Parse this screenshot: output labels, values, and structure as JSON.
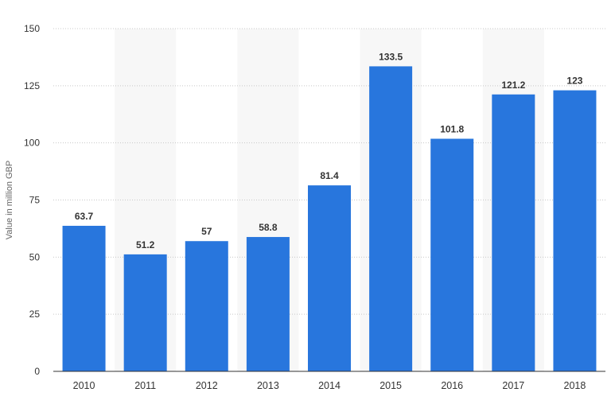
{
  "chart_data": {
    "type": "bar",
    "categories": [
      "2010",
      "2011",
      "2012",
      "2013",
      "2014",
      "2015",
      "2016",
      "2017",
      "2018"
    ],
    "values": [
      63.7,
      51.2,
      57,
      58.8,
      81.4,
      133.5,
      101.8,
      121.2,
      123
    ],
    "data_labels": [
      "63.7",
      "51.2",
      "57",
      "58.8",
      "81.4",
      "133.5",
      "101.8",
      "121.2",
      "123"
    ],
    "title": "",
    "xlabel": "",
    "ylabel": "Value in million GBP",
    "ylim": [
      0,
      150
    ],
    "yticks": [
      "0",
      "25",
      "50",
      "75",
      "100",
      "125",
      "150"
    ],
    "grid": true,
    "legend": "none",
    "colors": {
      "bar": "#2876dd",
      "grid": "#c8c8c8",
      "axis": "#333333",
      "band": "#f7f7f7"
    }
  }
}
